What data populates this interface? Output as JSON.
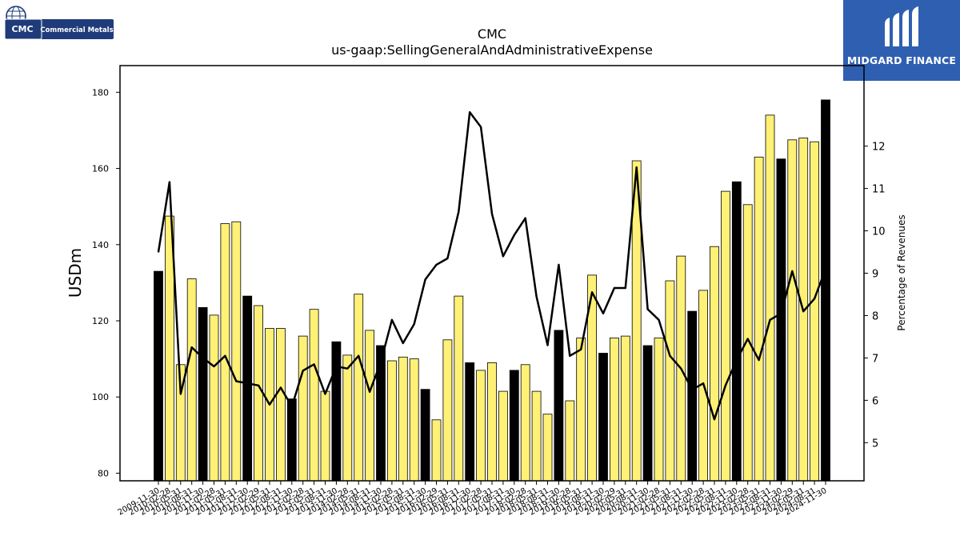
{
  "logos": {
    "left_company": "Commercial Metals",
    "left_mark": "CMC",
    "right_brand": "MIDGARD FINANCE"
  },
  "chart_data": {
    "type": "bar",
    "title": "CMC",
    "subtitle": "us-gaap:SellingGeneralAndAdministrativeExpense",
    "ylabel": "USDm",
    "y2label": "Percentage of Revenues",
    "ylim": [
      78,
      187
    ],
    "y2lim": [
      4.1,
      13.9
    ],
    "yticks": [
      80,
      100,
      120,
      140,
      160,
      180
    ],
    "y2ticks": [
      5,
      6,
      7,
      8,
      9,
      10,
      11,
      12
    ],
    "colors": {
      "annual_bar": "#000000",
      "quarter_bar": "#fff176",
      "bar_edge": "#000000",
      "line": "#000000"
    },
    "categories": [
      "2009-11-30",
      "2010-02-28",
      "2010-05-31",
      "2010-08-31",
      "2010-11-30",
      "2011-02-28",
      "2011-05-31",
      "2011-08-31",
      "2011-11-30",
      "2012-02-29",
      "2012-05-31",
      "2012-08-31",
      "2012-11-30",
      "2013-02-28",
      "2013-05-31",
      "2013-08-31",
      "2013-11-30",
      "2014-02-28",
      "2014-05-31",
      "2014-08-31",
      "2014-11-30",
      "2015-02-28",
      "2015-05-31",
      "2015-08-31",
      "2015-11-30",
      "2016-02-29",
      "2016-05-31",
      "2016-08-31",
      "2016-11-30",
      "2017-02-28",
      "2017-05-31",
      "2017-08-31",
      "2017-11-30",
      "2018-02-28",
      "2018-05-31",
      "2018-08-31",
      "2018-11-30",
      "2019-02-28",
      "2019-05-31",
      "2019-08-31",
      "2019-11-30",
      "2020-02-29",
      "2020-05-31",
      "2020-08-31",
      "2020-11-30",
      "2021-02-28",
      "2021-05-31",
      "2021-08-31",
      "2021-11-30",
      "2022-02-28",
      "2022-05-31",
      "2022-08-31",
      "2022-11-30",
      "2023-02-28",
      "2023-05-31",
      "2023-08-31",
      "2023-11-30",
      "2024-02-29",
      "2024-05-31",
      "2024-08-31",
      "2024-11-30"
    ],
    "series": [
      {
        "kind": "bar",
        "axis": "left",
        "values": [
          133,
          147.5,
          108.5,
          131,
          123.5,
          121.5,
          145.5,
          146,
          126.5,
          124,
          118,
          118,
          99.5,
          116,
          123,
          101.5,
          114.5,
          111,
          127,
          117.5,
          113.5,
          109.5,
          110.5,
          110,
          102,
          94,
          115,
          126.5,
          109,
          107,
          109,
          101.5,
          107,
          108.5,
          101.5,
          95.5,
          117.5,
          99,
          115.5,
          132,
          111.5,
          115.5,
          116,
          162,
          113.5,
          115.5,
          130.5,
          137,
          122.5,
          128,
          139.5,
          154,
          156.5,
          150.5,
          163,
          174,
          162.5,
          167.5,
          168,
          167,
          178
        ],
        "annual": [
          true,
          false,
          false,
          false,
          true,
          false,
          false,
          false,
          true,
          false,
          false,
          false,
          true,
          false,
          false,
          false,
          true,
          false,
          false,
          false,
          true,
          false,
          false,
          false,
          true,
          false,
          false,
          false,
          true,
          false,
          false,
          false,
          true,
          false,
          false,
          false,
          true,
          false,
          false,
          false,
          true,
          false,
          false,
          false,
          true,
          false,
          false,
          false,
          true,
          false,
          false,
          false,
          true,
          false,
          false,
          false,
          true,
          false,
          false,
          false,
          true
        ]
      },
      {
        "kind": "line",
        "axis": "right",
        "values": [
          9.5,
          11.15,
          6.15,
          7.25,
          7.0,
          6.8,
          7.05,
          6.45,
          6.4,
          6.35,
          5.9,
          6.3,
          5.85,
          6.7,
          6.85,
          6.15,
          6.8,
          6.75,
          7.05,
          6.2,
          6.9,
          7.9,
          7.35,
          7.8,
          8.85,
          9.2,
          9.35,
          10.45,
          12.8,
          12.45,
          10.4,
          9.4,
          9.9,
          10.3,
          8.45,
          7.3,
          9.2,
          7.05,
          7.2,
          8.55,
          8.05,
          8.65,
          8.65,
          11.5,
          8.15,
          7.9,
          7.05,
          6.75,
          6.25,
          6.4,
          5.55,
          6.35,
          6.95,
          7.45,
          6.95,
          7.9,
          8.05,
          9.05,
          8.1,
          8.4,
          9.1
        ]
      }
    ]
  }
}
